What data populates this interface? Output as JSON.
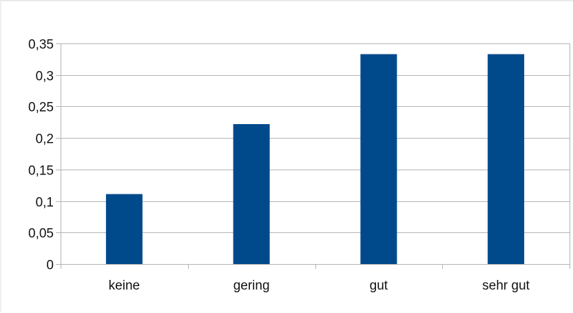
{
  "chart_data": {
    "type": "bar",
    "categories": [
      "keine",
      "gering",
      "gut",
      "sehr gut"
    ],
    "values": [
      0.111,
      0.222,
      0.333,
      0.333
    ],
    "title": "",
    "xlabel": "",
    "ylabel": "",
    "ylim": [
      0,
      0.35
    ],
    "yticks": [
      0,
      0.05,
      0.1,
      0.15,
      0.2,
      0.25,
      0.3,
      0.35
    ],
    "ytick_labels": [
      "0",
      "0,05",
      "0,1",
      "0,15",
      "0,2",
      "0,25",
      "0,3",
      "0,35"
    ],
    "grid": "horizontal",
    "legend": "none",
    "bar_color": "#004a8c",
    "grid_color": "#b3b3b3"
  }
}
